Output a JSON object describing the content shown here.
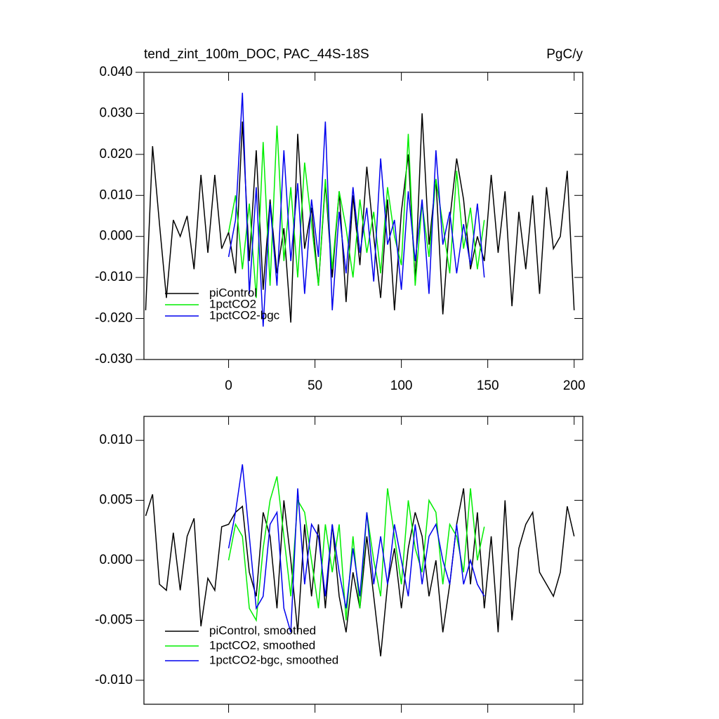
{
  "chart_data": [
    {
      "type": "line",
      "title": "tend_zint_100m_DOC, PAC_44S-18S",
      "subtitle": "PgC/y",
      "x": [
        -48,
        -44,
        -40,
        -36,
        -32,
        -28,
        -24,
        -20,
        -16,
        -12,
        -8,
        -4,
        0,
        4,
        8,
        12,
        16,
        20,
        24,
        28,
        32,
        36,
        40,
        44,
        48,
        52,
        56,
        60,
        64,
        68,
        72,
        76,
        80,
        84,
        88,
        92,
        96,
        100,
        104,
        108,
        112,
        116,
        120,
        124,
        128,
        132,
        136,
        140,
        144,
        148,
        152,
        156,
        160,
        164,
        168,
        172,
        176,
        180,
        184,
        188,
        192,
        196,
        200
      ],
      "xlim": [
        -49,
        205
      ],
      "xticks": [
        0,
        50,
        100,
        150,
        200
      ],
      "show_xtick_labels": true,
      "ylim": [
        -0.03,
        0.04
      ],
      "yticks": [
        {
          "value": -0.03,
          "label": "-0.030"
        },
        {
          "value": -0.02,
          "label": "-0.020"
        },
        {
          "value": -0.01,
          "label": "-0.010"
        },
        {
          "value": 0,
          "label": "0.000"
        },
        {
          "value": 0.01,
          "label": "0.010"
        },
        {
          "value": 0.02,
          "label": "0.020"
        },
        {
          "value": 0.03,
          "label": "0.030"
        },
        {
          "value": 0.04,
          "label": "0.040"
        }
      ],
      "legend": "lower left",
      "series": [
        {
          "name": "piControl",
          "color": "#000000",
          "values": [
            -0.018,
            0.022,
            0.003,
            -0.015,
            0.004,
            0.0,
            0.005,
            -0.008,
            0.015,
            -0.004,
            0.015,
            -0.003,
            0.001,
            -0.009,
            0.028,
            -0.006,
            0.021,
            -0.013,
            0.009,
            -0.009,
            0.002,
            -0.021,
            0.025,
            -0.003,
            0.007,
            -0.012,
            0.013,
            -0.01,
            0.011,
            -0.016,
            0.01,
            -0.007,
            0.017,
            0.0,
            -0.015,
            0.009,
            -0.018,
            0.006,
            0.02,
            -0.011,
            0.03,
            -0.002,
            0.014,
            -0.019,
            0.004,
            0.019,
            0.009,
            -0.008,
            0.0,
            -0.006,
            0.015,
            -0.004,
            0.011,
            -0.017,
            0.006,
            -0.008,
            0.01,
            -0.014,
            0.012,
            -0.003,
            0.0,
            0.016,
            -0.018
          ]
        },
        {
          "name": "1pctCO2",
          "color": "#00ee00",
          "values": [
            null,
            null,
            null,
            null,
            null,
            null,
            null,
            null,
            null,
            null,
            null,
            null,
            0.001,
            0.01,
            -0.008,
            0.008,
            -0.015,
            0.023,
            -0.012,
            0.027,
            -0.006,
            0.012,
            -0.01,
            0.018,
            0.003,
            -0.012,
            0.014,
            -0.008,
            0.011,
            0.002,
            -0.01,
            0.009,
            -0.004,
            0.006,
            -0.009,
            0.012,
            0.0,
            -0.007,
            0.025,
            -0.012,
            0.008,
            -0.005,
            0.014,
            0.003,
            -0.009,
            0.016,
            -0.003,
            0.007,
            -0.008,
            0.004,
            null,
            null,
            null,
            null,
            null,
            null,
            null,
            null,
            null,
            null,
            null,
            null,
            null
          ]
        },
        {
          "name": "1pctCO2-bgc",
          "color": "#0000ee",
          "values": [
            null,
            null,
            null,
            null,
            null,
            null,
            null,
            null,
            null,
            null,
            null,
            null,
            -0.005,
            0.004,
            0.035,
            -0.014,
            0.012,
            -0.022,
            0.008,
            -0.012,
            0.021,
            -0.006,
            0.013,
            -0.014,
            0.009,
            -0.005,
            0.028,
            -0.018,
            0.006,
            -0.009,
            0.012,
            -0.004,
            0.007,
            -0.011,
            0.019,
            -0.002,
            0.004,
            -0.013,
            0.011,
            -0.006,
            0.009,
            -0.014,
            0.021,
            -0.002,
            0.006,
            -0.009,
            0.003,
            -0.007,
            0.008,
            -0.01,
            null,
            null,
            null,
            null,
            null,
            null,
            null,
            null,
            null,
            null,
            null,
            null,
            null
          ]
        }
      ]
    },
    {
      "type": "line",
      "x": [
        -48,
        -44,
        -40,
        -36,
        -32,
        -28,
        -24,
        -20,
        -16,
        -12,
        -8,
        -4,
        0,
        4,
        8,
        12,
        16,
        20,
        24,
        28,
        32,
        36,
        40,
        44,
        48,
        52,
        56,
        60,
        64,
        68,
        72,
        76,
        80,
        84,
        88,
        92,
        96,
        100,
        104,
        108,
        112,
        116,
        120,
        124,
        128,
        132,
        136,
        140,
        144,
        148,
        152,
        156,
        160,
        164,
        168,
        172,
        176,
        180,
        184,
        188,
        192,
        196,
        200
      ],
      "xlim": [
        -49,
        205
      ],
      "xticks": [
        0,
        50,
        100,
        150,
        200
      ],
      "show_xtick_labels": false,
      "ylim": [
        -0.012,
        0.012
      ],
      "yticks": [
        {
          "value": -0.01,
          "label": "-0.010"
        },
        {
          "value": -0.005,
          "label": "-0.005"
        },
        {
          "value": 0,
          "label": "0.000"
        },
        {
          "value": 0.005,
          "label": "0.005"
        },
        {
          "value": 0.01,
          "label": "0.010"
        }
      ],
      "legend": "lower left",
      "series": [
        {
          "name": "piControl, smoothed",
          "color": "#000000",
          "values": [
            0.0037,
            0.0055,
            -0.002,
            -0.0025,
            0.0023,
            -0.0025,
            0.002,
            0.0035,
            -0.0055,
            -0.0015,
            -0.0025,
            0.0028,
            0.003,
            0.004,
            0.0045,
            -0.001,
            -0.003,
            0.004,
            0.002,
            -0.004,
            0.005,
            0.0,
            -0.006,
            0.003,
            -0.003,
            0.003,
            -0.004,
            0.003,
            -0.003,
            -0.006,
            -0.001,
            -0.004,
            0.002,
            -0.003,
            -0.008,
            -0.002,
            0.001,
            -0.004,
            0.001,
            0.004,
            0.002,
            -0.003,
            0.0,
            -0.006,
            -0.002,
            0.003,
            0.006,
            -0.002,
            0.004,
            -0.004,
            0.002,
            -0.006,
            0.005,
            -0.005,
            0.001,
            0.003,
            0.004,
            -0.001,
            -0.002,
            -0.003,
            -0.001,
            0.0045,
            0.002
          ]
        },
        {
          "name": "1pctCO2, smoothed",
          "color": "#00ee00",
          "values": [
            null,
            null,
            null,
            null,
            null,
            null,
            null,
            null,
            null,
            null,
            null,
            null,
            0.0,
            0.003,
            0.002,
            -0.004,
            -0.005,
            0.001,
            0.005,
            0.007,
            0.002,
            -0.003,
            0.005,
            0.004,
            0.0,
            -0.004,
            0.003,
            -0.001,
            0.003,
            -0.005,
            0.002,
            -0.004,
            0.004,
            0.0,
            -0.003,
            0.006,
            0.002,
            -0.002,
            0.005,
            0.001,
            -0.001,
            0.005,
            0.004,
            -0.002,
            0.003,
            0.002,
            -0.001,
            0.006,
            0.0,
            0.0028,
            null,
            null,
            null,
            null,
            null,
            null,
            null,
            null,
            null,
            null,
            null,
            null,
            null
          ]
        },
        {
          "name": "1pctCO2-bgc, smoothed",
          "color": "#0000ee",
          "values": [
            null,
            null,
            null,
            null,
            null,
            null,
            null,
            null,
            null,
            null,
            null,
            null,
            0.001,
            0.004,
            0.008,
            0.002,
            -0.004,
            -0.003,
            0.003,
            0.004,
            -0.004,
            -0.006,
            0.006,
            -0.002,
            0.003,
            0.002,
            -0.003,
            0.003,
            -0.001,
            -0.004,
            0.001,
            -0.003,
            0.004,
            -0.002,
            0.002,
            -0.002,
            0.003,
            0.0,
            -0.003,
            0.003,
            -0.002,
            0.002,
            0.003,
            0.0,
            -0.002,
            0.003,
            -0.002,
            0.0,
            -0.002,
            -0.003,
            null,
            null,
            null,
            null,
            null,
            null,
            null,
            null,
            null,
            null,
            null,
            null,
            null
          ]
        }
      ]
    }
  ]
}
